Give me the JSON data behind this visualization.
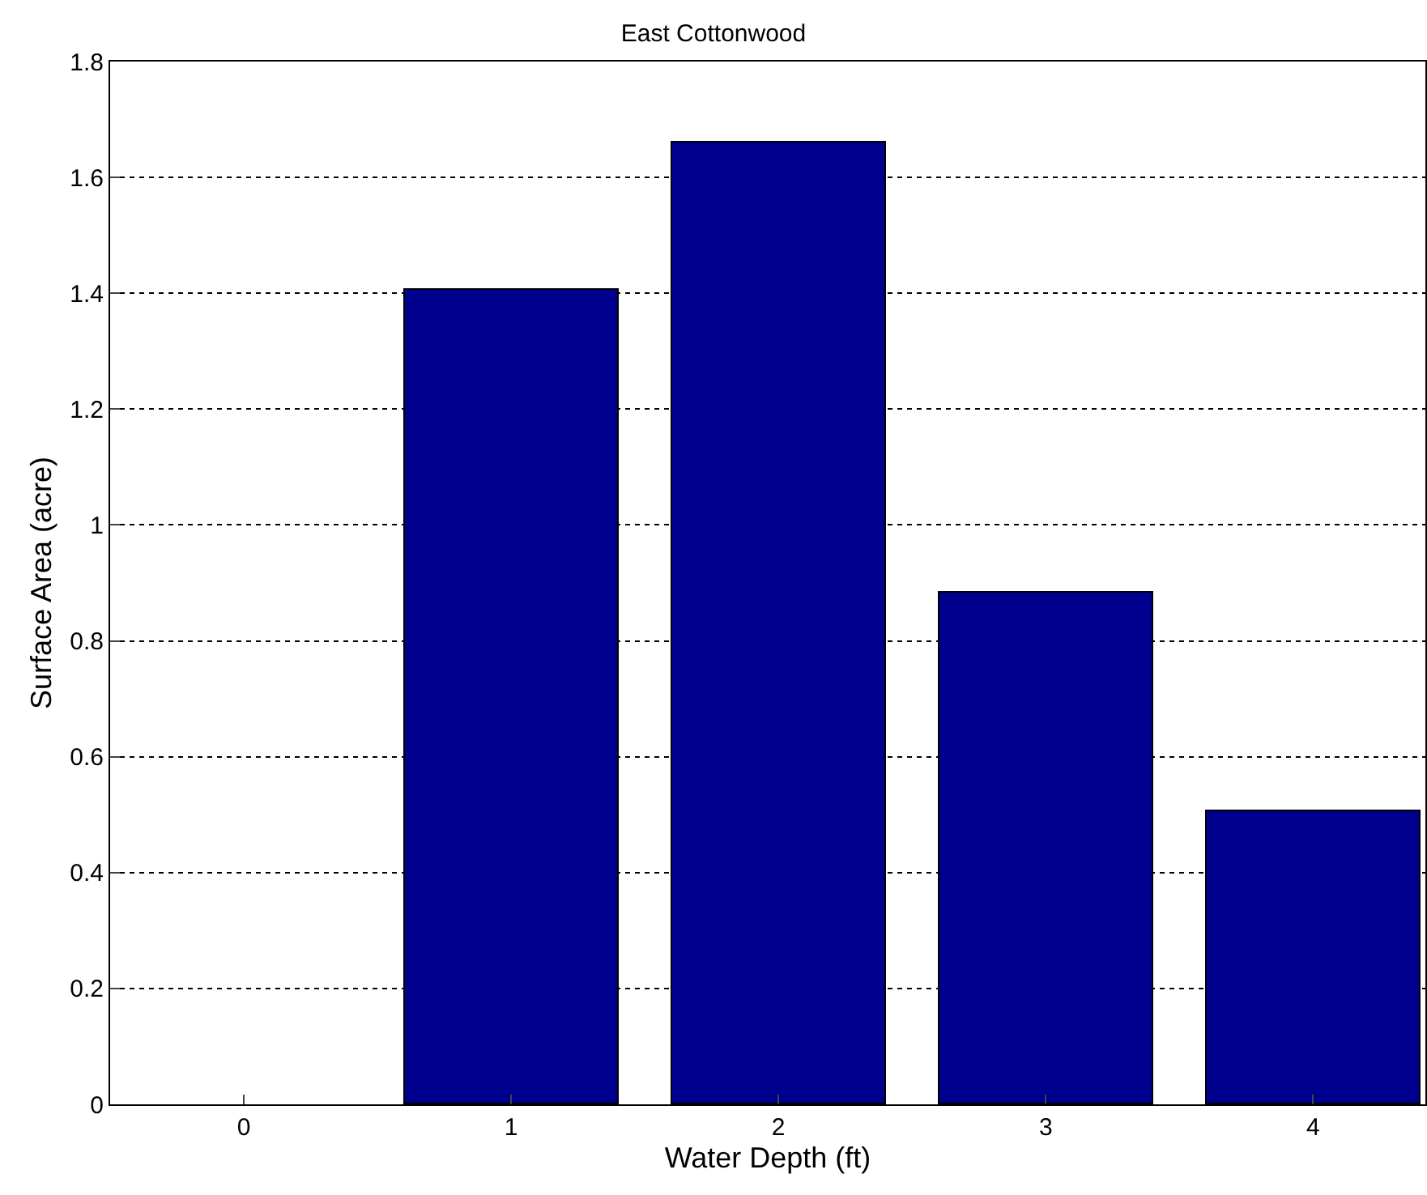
{
  "chart_data": {
    "type": "bar",
    "title": "East Cottonwood",
    "xlabel": "Water Depth (ft)",
    "ylabel": "Surface Area (acre)",
    "x": [
      0,
      1,
      2,
      3,
      4
    ],
    "values": [
      0,
      1.405,
      1.66,
      0.883,
      0.507
    ],
    "color": "#00008f",
    "xlim": [
      -0.5,
      4.42
    ],
    "xticks": [
      0,
      1,
      2,
      3,
      4
    ],
    "ylim": [
      0,
      1.8
    ],
    "yticks": [
      0,
      0.2,
      0.4,
      0.6,
      0.8,
      1,
      1.2,
      1.4,
      1.6,
      1.8
    ],
    "grid": "y",
    "legend": false
  }
}
